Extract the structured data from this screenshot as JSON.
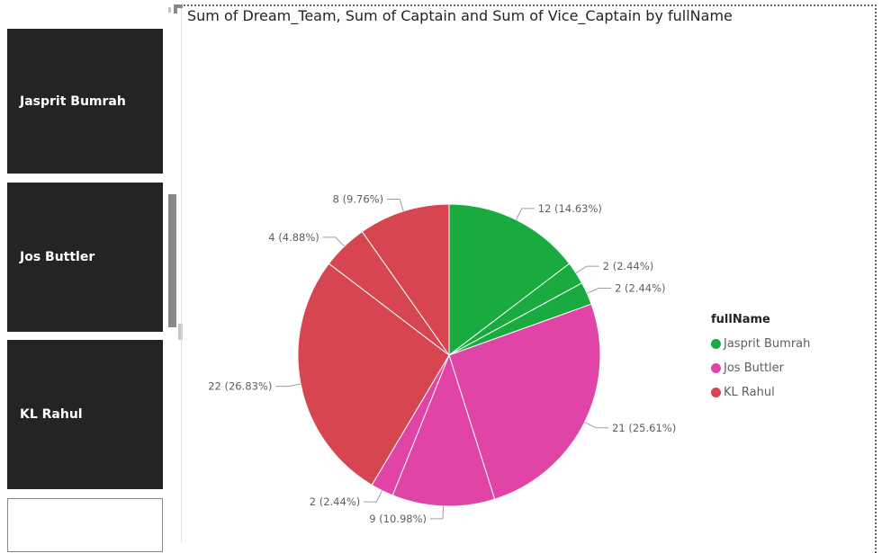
{
  "slicer": {
    "items": [
      {
        "label": "Jasprit Bumrah"
      },
      {
        "label": "Jos Buttler"
      },
      {
        "label": "KL Rahul"
      },
      {
        "label": ""
      }
    ]
  },
  "chart_data": {
    "type": "pie",
    "title": "Sum of Dream_Team, Sum of Captain and Sum of Vice_Captain by fullName",
    "legend": {
      "title": "fullName",
      "placement": "right",
      "entries": [
        {
          "name": "Jasprit Bumrah",
          "color": "#1aab40"
        },
        {
          "name": "Jos Buttler",
          "color": "#e044a7"
        },
        {
          "name": "KL Rahul",
          "color": "#d64550"
        }
      ]
    },
    "slices": [
      {
        "group": "Jasprit Bumrah",
        "value": 12,
        "label": "12 (14.63%)",
        "color": "#1aab40"
      },
      {
        "group": "Jasprit Bumrah",
        "value": 2,
        "label": "2 (2.44%)",
        "color": "#1aab40"
      },
      {
        "group": "Jasprit Bumrah",
        "value": 2,
        "label": "2 (2.44%)",
        "color": "#1aab40"
      },
      {
        "group": "Jos Buttler",
        "value": 21,
        "label": "21 (25.61%)",
        "color": "#e044a7"
      },
      {
        "group": "Jos Buttler",
        "value": 9,
        "label": "9 (10.98%)",
        "color": "#e044a7"
      },
      {
        "group": "Jos Buttler",
        "value": 2,
        "label": "2 (2.44%)",
        "color": "#e044a7"
      },
      {
        "group": "KL Rahul",
        "value": 22,
        "label": "22 (26.83%)",
        "color": "#d64550"
      },
      {
        "group": "KL Rahul",
        "value": 4,
        "label": "4 (4.88%)",
        "color": "#d64550"
      },
      {
        "group": "KL Rahul",
        "value": 8,
        "label": "8 (9.76%)",
        "color": "#d64550"
      }
    ]
  }
}
